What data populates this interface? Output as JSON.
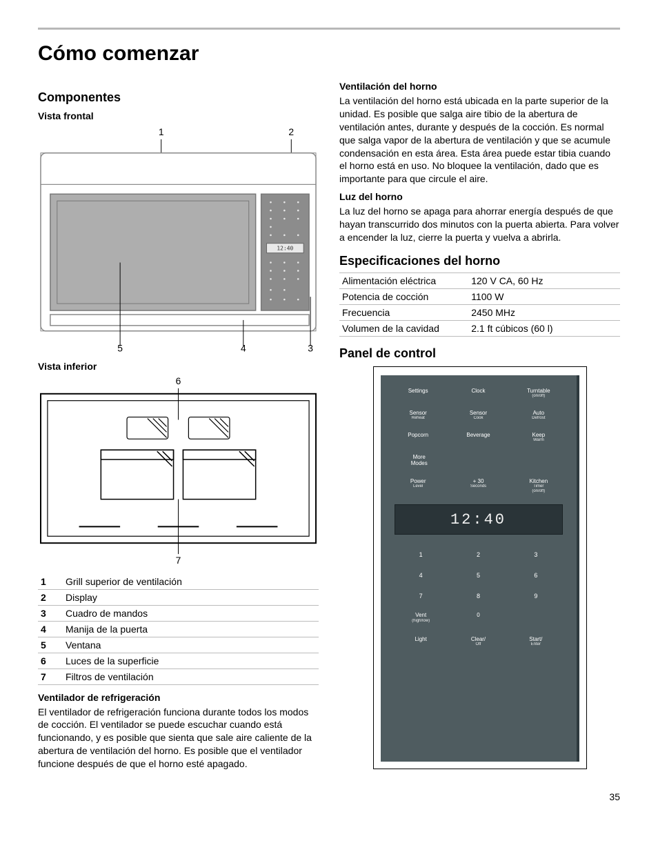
{
  "page": {
    "title": "Cómo comenzar",
    "page_number": "35"
  },
  "left": {
    "componentes_heading": "Componentes",
    "vista_frontal": "Vista frontal",
    "vista_inferior": "Vista inferior",
    "callouts": {
      "c1": "1",
      "c2": "2",
      "c3": "3",
      "c4": "4",
      "c5": "5",
      "c6": "6",
      "c7": "7"
    },
    "front_view": {
      "panel_time": "12:40",
      "outline_color": "#888888",
      "door_fill": "#aeaeae",
      "panel_fill": "#8c8c8c"
    },
    "legend": {
      "rows": [
        {
          "n": "1",
          "label": "Grill superior de ventilación"
        },
        {
          "n": "2",
          "label": "Display"
        },
        {
          "n": "3",
          "label": "Cuadro de mandos"
        },
        {
          "n": "4",
          "label": "Manija de la puerta"
        },
        {
          "n": "5",
          "label": "Ventana"
        },
        {
          "n": "6",
          "label": "Luces de la superficie"
        },
        {
          "n": "7",
          "label": "Filtros de ventilación"
        }
      ]
    },
    "ventilador_h": "Ventilador de refrigeración",
    "ventilador_p": "El ventilador de refrigeración funciona durante todos los modos de cocción. El ventilador se puede escuchar cuando está funcionando, y es posible que sienta que sale aire caliente de la abertura de ventilación del horno. Es posible que el ventilador funcione después de que el horno esté apagado."
  },
  "right": {
    "ventilacion_h": "Ventilación del horno",
    "ventilacion_p": "La ventilación del horno está ubicada en la parte superior de la unidad. Es posible que salga aire tibio de la abertura de ventilación antes, durante y después de la cocción. Es normal que salga vapor de la abertura de ventilación y que se acumule condensación en esta área. Esta área puede estar tibia cuando el horno está en uso. No bloquee la ventilación, dado que es importante para que circule el aire.",
    "luz_h": "Luz del horno",
    "luz_p": "La luz del horno se apaga para ahorrar energía después de que hayan transcurrido dos minutos con la puerta abierta. Para volver a encender la luz, cierre la puerta y vuelva a abrirla.",
    "specs_heading": "Especificaciones del horno",
    "specs": {
      "rows": [
        {
          "k": "Alimentación eléctrica",
          "v": "120 V CA, 60 Hz"
        },
        {
          "k": "Potencia de cocción",
          "v": "1100 W"
        },
        {
          "k": "Frecuencia",
          "v": "2450 MHz"
        },
        {
          "k": "Volumen de la cavidad",
          "v": "2.1 ft cúbicos (60 l)"
        }
      ]
    },
    "panel_heading": "Panel de control",
    "panel": {
      "bg": "#4f5c60",
      "display_bg": "#2a3438",
      "time": "12:40",
      "row1": [
        {
          "t": "Settings"
        },
        {
          "t": "Clock"
        },
        {
          "t": "Turntable",
          "s": "(on/off)"
        }
      ],
      "row2": [
        {
          "t": "Sensor",
          "s": "Reheat"
        },
        {
          "t": "Sensor",
          "s": "Cook"
        },
        {
          "t": "Auto",
          "s": "Defrost"
        }
      ],
      "row3": [
        {
          "t": "Popcorn"
        },
        {
          "t": "Beverage"
        },
        {
          "t": "Keep",
          "s": "Warm"
        }
      ],
      "row4": [
        {
          "t": "More",
          "s": "Modes"
        }
      ],
      "row5": [
        {
          "t": "Power",
          "s": "Level"
        },
        {
          "t": "+ 30",
          "s": "Seconds"
        },
        {
          "t": "Kitchen",
          "s": "Timer",
          "s2": "(on/off)"
        }
      ],
      "numpad": [
        "1",
        "2",
        "3",
        "4",
        "5",
        "6",
        "7",
        "8",
        "9"
      ],
      "bottom": [
        {
          "t": "Vent",
          "s": "(high/low)"
        },
        {
          "t": "0"
        },
        {
          "t": ""
        },
        {
          "t": "Light"
        },
        {
          "t": "Clear/",
          "s": "Off"
        },
        {
          "t": "Start/",
          "s": "Enter"
        }
      ]
    }
  }
}
